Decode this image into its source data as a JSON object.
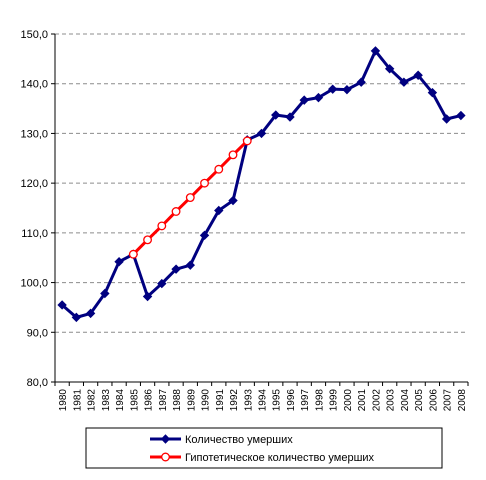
{
  "chart_data": {
    "type": "line",
    "title": "",
    "xlabel": "",
    "ylabel": "",
    "ylim": [
      80,
      150
    ],
    "yticks": [
      "80,0",
      "90,0",
      "100,0",
      "110,0",
      "120,0",
      "130,0",
      "140,0",
      "150,0"
    ],
    "grid": "horizontal dashed",
    "legend_position": "bottom",
    "x": [
      "1980",
      "1981",
      "1982",
      "1983",
      "1984",
      "1985",
      "1986",
      "1987",
      "1988",
      "1989",
      "1990",
      "1991",
      "1992",
      "1993",
      "1994",
      "1995",
      "1996",
      "1997",
      "1998",
      "1999",
      "2000",
      "2001",
      "2002",
      "2003",
      "2004",
      "2005",
      "2006",
      "2007",
      "2008"
    ],
    "series": [
      {
        "name": "Количество умерших",
        "color": "#000080",
        "marker": "diamond",
        "values": [
          95.5,
          93.0,
          93.8,
          97.8,
          104.2,
          105.7,
          97.2,
          99.8,
          102.7,
          103.5,
          109.5,
          114.5,
          116.5,
          128.7,
          130.0,
          133.7,
          133.3,
          136.7,
          137.2,
          138.9,
          138.8,
          140.3,
          146.6,
          143.0,
          140.3,
          141.7,
          138.2,
          132.9,
          133.6
        ]
      },
      {
        "name": "Гипотетическое количество умерших",
        "color": "#ff0000",
        "marker": "circle",
        "values": [
          null,
          null,
          null,
          null,
          null,
          105.7,
          108.6,
          111.4,
          114.3,
          117.1,
          120.0,
          122.8,
          125.7,
          128.5,
          null,
          null,
          null,
          null,
          null,
          null,
          null,
          null,
          null,
          null,
          null,
          null,
          null,
          null,
          null
        ]
      }
    ]
  }
}
